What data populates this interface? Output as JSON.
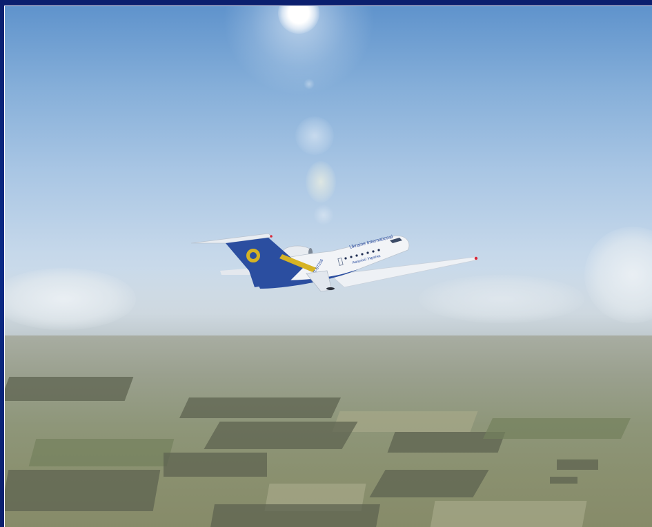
{
  "window": {
    "frame_color": "#0b1f6e",
    "border_color": "#ffffff"
  },
  "scene": {
    "sky_top_color": "#5f93cc",
    "horizon_color": "#d7e1ea",
    "ground_color": "#8e9679"
  },
  "aircraft": {
    "livery_text": "Ukraine International",
    "subtitle_text": "Авіалінії України",
    "registration": "UR-87256",
    "fuselage_color": "#f2f4f7",
    "tail_color": "#2b4ea0",
    "stripe_color": "#d6b324"
  }
}
